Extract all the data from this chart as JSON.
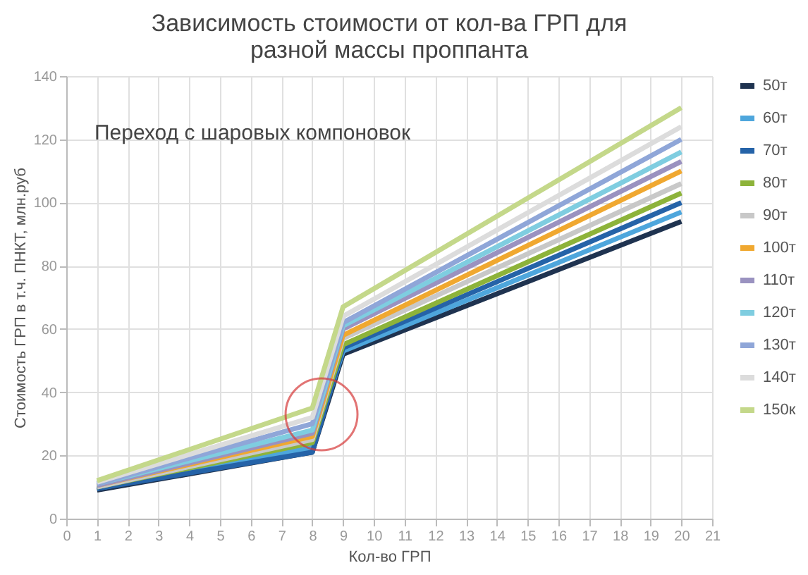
{
  "chart_data": {
    "type": "line",
    "title": [
      "Зависимость стоимости от кол-ва ГРП для",
      "разной массы проппанта"
    ],
    "xlabel": "Кол-во ГРП",
    "ylabel": "Стоимость ГРП в т.ч. ПНКТ, млн.руб",
    "x": [
      1,
      8,
      9,
      20
    ],
    "series": [
      {
        "name": "50т",
        "color": "#1f3350",
        "values": [
          9,
          21,
          52,
          94
        ]
      },
      {
        "name": "60т",
        "color": "#4ea6dc",
        "values": [
          9.5,
          22.5,
          53,
          97
        ]
      },
      {
        "name": "70т",
        "color": "#2563a8",
        "values": [
          9.5,
          21,
          54,
          100
        ]
      },
      {
        "name": "80т",
        "color": "#8db33a",
        "values": [
          10,
          24,
          55,
          103
        ]
      },
      {
        "name": "90т",
        "color": "#c8c8c8",
        "values": [
          10,
          25,
          57,
          106
        ]
      },
      {
        "name": "100т",
        "color": "#f0a830",
        "values": [
          10.5,
          26,
          58,
          110
        ]
      },
      {
        "name": "110т",
        "color": "#9a92c0",
        "values": [
          10.5,
          27,
          60,
          113
        ]
      },
      {
        "name": "120т",
        "color": "#7fcde0",
        "values": [
          11,
          28,
          61,
          116
        ]
      },
      {
        "name": "130т",
        "color": "#8fa6d8",
        "values": [
          11,
          30,
          62,
          120
        ]
      },
      {
        "name": "140т",
        "color": "#dcdcdc",
        "values": [
          11.5,
          32,
          64,
          124
        ]
      },
      {
        "name": "150к",
        "color": "#c4d88a",
        "values": [
          12,
          35,
          67,
          130
        ]
      }
    ],
    "xlim": [
      0,
      21
    ],
    "xticks": [
      0,
      1,
      2,
      3,
      4,
      5,
      6,
      7,
      8,
      9,
      10,
      11,
      12,
      13,
      14,
      15,
      16,
      17,
      18,
      19,
      20,
      21
    ],
    "ylim": [
      0,
      140
    ],
    "yticks": [
      0,
      20,
      40,
      60,
      80,
      100,
      120,
      140
    ],
    "grid": true,
    "legend": "right",
    "marker": "none",
    "line_style": "solid",
    "annotations": [
      "Переход с шаровых компоновок"
    ]
  }
}
